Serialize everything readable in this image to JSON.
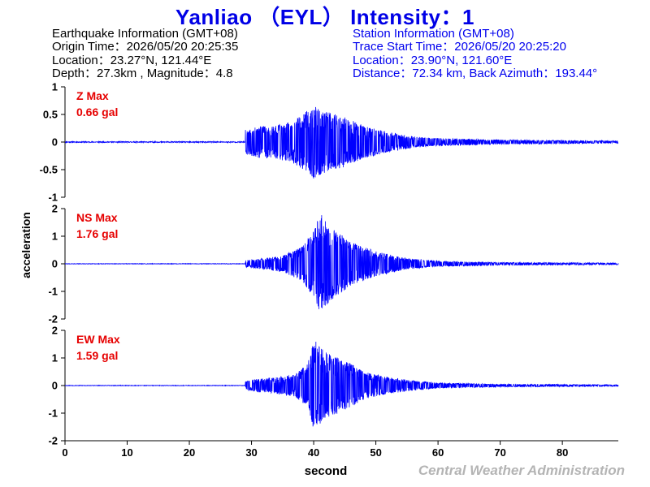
{
  "title": "Yanliao （EYL） Intensity：1",
  "earthquake": {
    "heading": "Earthquake Information  (GMT+08)",
    "origin_time": "Origin Time：2026/05/20 20:25:35",
    "location": "Location：23.27°N, 121.44°E",
    "depth_magnitude": "Depth：27.3km , Magnitude：4.8"
  },
  "station": {
    "heading": "Station Information  (GMT+08)",
    "trace_start": "Trace Start Time：2026/05/20 20:25:20",
    "location": "Location：23.90°N, 121.60°E",
    "distance": "Distance：72.34 km, Back Azimuth：193.44°"
  },
  "credit": "Central Weather Administration",
  "chart_data": {
    "type": "line",
    "xlabel": "second",
    "ylabel": "acceleration",
    "xlim": [
      0,
      89
    ],
    "xticks": [
      0,
      10,
      20,
      30,
      40,
      50,
      60,
      70,
      80
    ],
    "trace_color": "#0000ff",
    "label_color": "#e60000",
    "series": [
      {
        "name": "Z",
        "max_label": "Z Max",
        "max_value": "0.66 gal",
        "peak": 0.66,
        "ylim": [
          -1,
          1
        ],
        "yticks": [
          -1,
          -0.5,
          0,
          0.5,
          1
        ],
        "onset": 29,
        "decay": 13,
        "pre_event_amp": 0.01,
        "seed": 11,
        "envelope": [
          [
            29,
            0.22
          ],
          [
            31,
            0.28
          ],
          [
            34,
            0.3
          ],
          [
            37,
            0.4
          ],
          [
            40,
            0.66
          ],
          [
            42,
            0.55
          ],
          [
            45,
            0.45
          ],
          [
            48,
            0.3
          ],
          [
            52,
            0.18
          ],
          [
            56,
            0.1
          ],
          [
            60,
            0.07
          ],
          [
            70,
            0.04
          ],
          [
            89,
            0.02
          ]
        ]
      },
      {
        "name": "NS",
        "max_label": "NS Max",
        "max_value": "1.76 gal",
        "peak": 1.76,
        "ylim": [
          -2,
          2
        ],
        "yticks": [
          -2,
          -1,
          0,
          1,
          2
        ],
        "onset": 29,
        "decay": 13,
        "pre_event_amp": 0.01,
        "seed": 27,
        "envelope": [
          [
            29,
            0.12
          ],
          [
            32,
            0.2
          ],
          [
            35,
            0.3
          ],
          [
            38,
            0.6
          ],
          [
            40,
            1.2
          ],
          [
            41,
            1.76
          ],
          [
            43,
            1.3
          ],
          [
            46,
            0.8
          ],
          [
            50,
            0.45
          ],
          [
            55,
            0.2
          ],
          [
            60,
            0.1
          ],
          [
            70,
            0.05
          ],
          [
            89,
            0.03
          ]
        ]
      },
      {
        "name": "EW",
        "max_label": "EW Max",
        "max_value": "1.59 gal",
        "peak": 1.59,
        "ylim": [
          -2,
          2
        ],
        "yticks": [
          -2,
          -1,
          0,
          1,
          2
        ],
        "onset": 29,
        "decay": 13,
        "pre_event_amp": 0.01,
        "seed": 53,
        "envelope": [
          [
            29,
            0.15
          ],
          [
            31,
            0.25
          ],
          [
            34,
            0.3
          ],
          [
            37,
            0.4
          ],
          [
            39,
            0.8
          ],
          [
            40,
            1.59
          ],
          [
            42,
            1.2
          ],
          [
            44,
            1.0
          ],
          [
            46,
            0.8
          ],
          [
            48,
            0.5
          ],
          [
            52,
            0.3
          ],
          [
            56,
            0.18
          ],
          [
            60,
            0.1
          ],
          [
            70,
            0.05
          ],
          [
            89,
            0.03
          ]
        ]
      }
    ]
  }
}
